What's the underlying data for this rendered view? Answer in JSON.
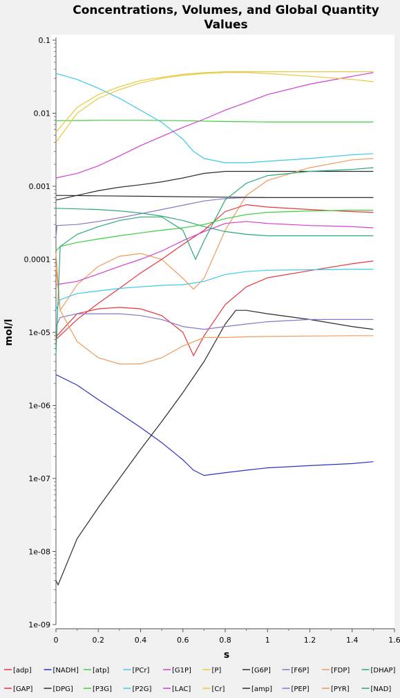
{
  "chart_data": {
    "type": "line",
    "title_line1": "Concentrations, Volumes, and Global Quantity",
    "title_line2": "Values",
    "xlabel": "s",
    "ylabel": "mol/l",
    "xlim": [
      0,
      1.6
    ],
    "ylim": [
      1e-09,
      0.1
    ],
    "yscale": "log",
    "x_ticks": [
      "0",
      "0.2",
      "0.4",
      "0.6",
      "0.8",
      "1",
      "1.2",
      "1.4",
      "1.6"
    ],
    "y_ticks": [
      "1e-09",
      "1e-08",
      "1e-07",
      "1e-06",
      "1e-05",
      "0.0001",
      "0.001",
      "0.01",
      "0.1"
    ],
    "legend_position": "bottom",
    "series": [
      {
        "name": "[adp]",
        "color": "#e8343a",
        "x": [
          0,
          0.005,
          0.1,
          0.2,
          0.3,
          0.4,
          0.5,
          0.6,
          0.65,
          0.7,
          0.8,
          0.9,
          1.0,
          1.2,
          1.4,
          1.5
        ],
        "y": [
          7e-06,
          9e-06,
          1.8e-05,
          2.1e-05,
          2.2e-05,
          2.1e-05,
          1.7e-05,
          1e-05,
          4.8e-06,
          9e-06,
          2.4e-05,
          4.2e-05,
          5.6e-05,
          7e-05,
          8.7e-05,
          9.5e-05
        ]
      },
      {
        "name": "[NADH]",
        "color": "#2a2fc7",
        "x": [
          0,
          0.005,
          0.1,
          0.2,
          0.3,
          0.4,
          0.5,
          0.6,
          0.65,
          0.7,
          0.8,
          0.9,
          1.0,
          1.2,
          1.4,
          1.5
        ],
        "y": [
          2.6e-06,
          2.6e-06,
          1.9e-06,
          1.2e-06,
          7.8e-07,
          5e-07,
          3.1e-07,
          1.8e-07,
          1.3e-07,
          1.1e-07,
          1.2e-07,
          1.3e-07,
          1.4e-07,
          1.5e-07,
          1.6e-07,
          1.7e-07
        ]
      },
      {
        "name": "[atp]",
        "color": "#3ccf3c",
        "x": [
          0,
          0.2,
          0.4,
          0.6,
          0.8,
          1.0,
          1.2,
          1.4,
          1.5
        ],
        "y": [
          0.0079,
          0.008,
          0.008,
          0.0079,
          0.0077,
          0.0076,
          0.0076,
          0.0076,
          0.0076
        ]
      },
      {
        "name": "[PCr]",
        "color": "#3cc8e8",
        "x": [
          0,
          0.1,
          0.2,
          0.3,
          0.4,
          0.5,
          0.6,
          0.65,
          0.7,
          0.8,
          0.9,
          1.0,
          1.2,
          1.4,
          1.5
        ],
        "y": [
          0.035,
          0.029,
          0.022,
          0.016,
          0.011,
          0.0075,
          0.0044,
          0.003,
          0.0024,
          0.0021,
          0.0021,
          0.0022,
          0.0024,
          0.0027,
          0.0028
        ]
      },
      {
        "name": "[G1P]",
        "color": "#d23cd2",
        "x": [
          0,
          0.1,
          0.2,
          0.3,
          0.4,
          0.5,
          0.6,
          0.7,
          0.8,
          0.9,
          1.0,
          1.2,
          1.4,
          1.5
        ],
        "y": [
          0.0013,
          0.0015,
          0.0019,
          0.0026,
          0.0036,
          0.0048,
          0.0064,
          0.0083,
          0.011,
          0.014,
          0.018,
          0.025,
          0.032,
          0.036
        ]
      },
      {
        "name": "[P]",
        "color": "#e8c83c",
        "x": [
          0,
          0.1,
          0.2,
          0.3,
          0.4,
          0.5,
          0.6,
          0.7,
          0.8,
          0.9,
          1.0,
          1.2,
          1.4,
          1.5
        ],
        "y": [
          0.004,
          0.01,
          0.016,
          0.021,
          0.026,
          0.03,
          0.033,
          0.035,
          0.036,
          0.036,
          0.035,
          0.032,
          0.029,
          0.027
        ]
      },
      {
        "name": "[G6P]",
        "color": "#2a2a2a",
        "x": [
          0,
          0.005,
          0.1,
          0.2,
          0.3,
          0.4,
          0.5,
          0.6,
          0.7,
          0.8,
          0.9,
          1.0,
          1.2,
          1.4,
          1.5
        ],
        "y": [
          0.00065,
          0.00065,
          0.00075,
          0.00087,
          0.00097,
          0.00105,
          0.00115,
          0.0013,
          0.0015,
          0.0016,
          0.0016,
          0.0016,
          0.0016,
          0.0016,
          0.0016
        ]
      },
      {
        "name": "[F6P]",
        "color": "#8a73c8",
        "x": [
          0,
          0.005,
          0.1,
          0.2,
          0.3,
          0.4,
          0.5,
          0.6,
          0.7,
          0.8,
          0.9,
          1.0,
          1.2,
          1.4,
          1.5
        ],
        "y": [
          0.0002,
          0.00029,
          0.0003,
          0.00033,
          0.00037,
          0.00042,
          0.00048,
          0.00055,
          0.00063,
          0.00068,
          0.0007,
          0.0007,
          0.0007,
          0.0007,
          0.0007
        ]
      },
      {
        "name": "[FDP]",
        "color": "#f09a5a",
        "x": [
          0,
          0.02,
          0.1,
          0.2,
          0.3,
          0.4,
          0.5,
          0.6,
          0.65,
          0.7,
          0.8,
          0.9,
          1.0,
          1.2,
          1.4,
          1.5
        ],
        "y": [
          0.00012,
          2e-05,
          4.5e-05,
          8e-05,
          0.00011,
          0.00012,
          0.0001,
          5.5e-05,
          3.9e-05,
          5.5e-05,
          0.00025,
          0.00075,
          0.0012,
          0.0018,
          0.0023,
          0.0024
        ]
      },
      {
        "name": "[DHAP]",
        "color": "#2aa878",
        "x": [
          0,
          0.1,
          0.2,
          0.3,
          0.4,
          0.5,
          0.6,
          0.7,
          0.8,
          0.9,
          1.0,
          1.2,
          1.4,
          1.5
        ],
        "y": [
          0.0005,
          0.00049,
          0.00048,
          0.00046,
          0.00043,
          0.00039,
          0.00034,
          0.00028,
          0.00024,
          0.00022,
          0.00021,
          0.00021,
          0.00021,
          0.00021
        ]
      },
      {
        "name": "[GAP]",
        "color": "#e8343a",
        "x": [
          0,
          0.1,
          0.2,
          0.3,
          0.4,
          0.5,
          0.6,
          0.7,
          0.8,
          0.9,
          1.0,
          1.2,
          1.4,
          1.5
        ],
        "y": [
          8e-06,
          1.5e-05,
          2.5e-05,
          4e-05,
          6.5e-05,
          0.0001,
          0.00016,
          0.00025,
          0.00045,
          0.00056,
          0.00052,
          0.00048,
          0.00045,
          0.00044
        ]
      },
      {
        "name": "[DPG]",
        "color": "#2a2a2a",
        "x": [
          0,
          0.01,
          0.1,
          0.2,
          0.3,
          0.4,
          0.5,
          0.6,
          0.7,
          0.8,
          0.85,
          0.9,
          1.0,
          1.2,
          1.4,
          1.5
        ],
        "y": [
          4e-09,
          3.5e-09,
          1.5e-08,
          4e-08,
          1e-07,
          2.5e-07,
          6e-07,
          1.5e-06,
          4e-06,
          1.3e-05,
          2e-05,
          2e-05,
          1.8e-05,
          1.5e-05,
          1.2e-05,
          1.1e-05
        ]
      },
      {
        "name": "[P3G]",
        "color": "#3ccf3c",
        "x": [
          0,
          0.02,
          0.1,
          0.2,
          0.3,
          0.4,
          0.5,
          0.6,
          0.7,
          0.8,
          0.9,
          1.0,
          1.2,
          1.4,
          1.5
        ],
        "y": [
          0.00013,
          0.00015,
          0.00017,
          0.00019,
          0.00021,
          0.00023,
          0.00025,
          0.00027,
          0.0003,
          0.00036,
          0.00041,
          0.00044,
          0.00046,
          0.00047,
          0.00047
        ]
      },
      {
        "name": "[P2G]",
        "color": "#3cc8e8",
        "x": [
          0,
          0.02,
          0.1,
          0.2,
          0.3,
          0.4,
          0.5,
          0.6,
          0.7,
          0.8,
          0.9,
          1.0,
          1.2,
          1.4,
          1.5
        ],
        "y": [
          2e-05,
          2.8e-05,
          3.4e-05,
          3.7e-05,
          4e-05,
          4.2e-05,
          4.4e-05,
          4.5e-05,
          5e-05,
          6.2e-05,
          6.8e-05,
          7.1e-05,
          7.2e-05,
          7.3e-05,
          7.3e-05
        ]
      },
      {
        "name": "[LAC]",
        "color": "#d23cd2",
        "x": [
          0,
          0.1,
          0.2,
          0.3,
          0.4,
          0.5,
          0.6,
          0.7,
          0.8,
          0.9,
          1.0,
          1.2,
          1.4,
          1.5
        ],
        "y": [
          4.5e-05,
          5e-05,
          6.3e-05,
          8e-05,
          0.0001,
          0.00013,
          0.00018,
          0.00024,
          0.00031,
          0.00033,
          0.00031,
          0.00029,
          0.00028,
          0.00027
        ]
      },
      {
        "name": "[Cr]",
        "color": "#e8c83c",
        "x": [
          0,
          0.1,
          0.2,
          0.3,
          0.4,
          0.5,
          0.6,
          0.7,
          0.8,
          0.9,
          1.0,
          1.2,
          1.4,
          1.5
        ],
        "y": [
          0.0055,
          0.012,
          0.018,
          0.023,
          0.028,
          0.031,
          0.034,
          0.036,
          0.037,
          0.037,
          0.037,
          0.037,
          0.037,
          0.037
        ]
      },
      {
        "name": "[amp]",
        "color": "#2a2a2a",
        "x": [
          0,
          0.2,
          0.4,
          0.6,
          0.8,
          1.0,
          1.2,
          1.4,
          1.5
        ],
        "y": [
          0.00075,
          0.00074,
          0.00073,
          0.00072,
          0.00071,
          0.0007,
          0.0007,
          0.0007,
          0.0007
        ]
      },
      {
        "name": "[PEP]",
        "color": "#8a73c8",
        "x": [
          0,
          0.02,
          0.1,
          0.2,
          0.3,
          0.4,
          0.5,
          0.6,
          0.7,
          0.8,
          0.9,
          1.0,
          1.2,
          1.4,
          1.5
        ],
        "y": [
          1.2e-05,
          1.6e-05,
          1.8e-05,
          1.8e-05,
          1.8e-05,
          1.7e-05,
          1.5e-05,
          1.2e-05,
          1.1e-05,
          1.2e-05,
          1.3e-05,
          1.4e-05,
          1.5e-05,
          1.5e-05,
          1.5e-05
        ]
      },
      {
        "name": "[PYR]",
        "color": "#f09a5a",
        "x": [
          0,
          0.02,
          0.1,
          0.2,
          0.3,
          0.4,
          0.5,
          0.6,
          0.7,
          0.8,
          0.9,
          1.0,
          1.2,
          1.4,
          1.5
        ],
        "y": [
          8e-05,
          2e-05,
          7.5e-06,
          4.5e-06,
          3.7e-06,
          3.7e-06,
          4.5e-06,
          6.5e-06,
          8.5e-06,
          8.5e-06,
          8.7e-06,
          8.8e-06,
          8.9e-06,
          9e-06,
          9e-06
        ]
      },
      {
        "name": "[NAD]",
        "color": "#2aa878",
        "x": [
          0,
          0.02,
          0.1,
          0.2,
          0.3,
          0.4,
          0.5,
          0.6,
          0.66,
          0.7,
          0.8,
          0.9,
          1.0,
          1.2,
          1.4,
          1.5
        ],
        "y": [
          5e-06,
          0.00015,
          0.00022,
          0.00028,
          0.00034,
          0.00038,
          0.00038,
          0.00025,
          0.0001,
          0.00018,
          0.00065,
          0.0011,
          0.0014,
          0.0016,
          0.0017,
          0.0018
        ]
      }
    ]
  }
}
